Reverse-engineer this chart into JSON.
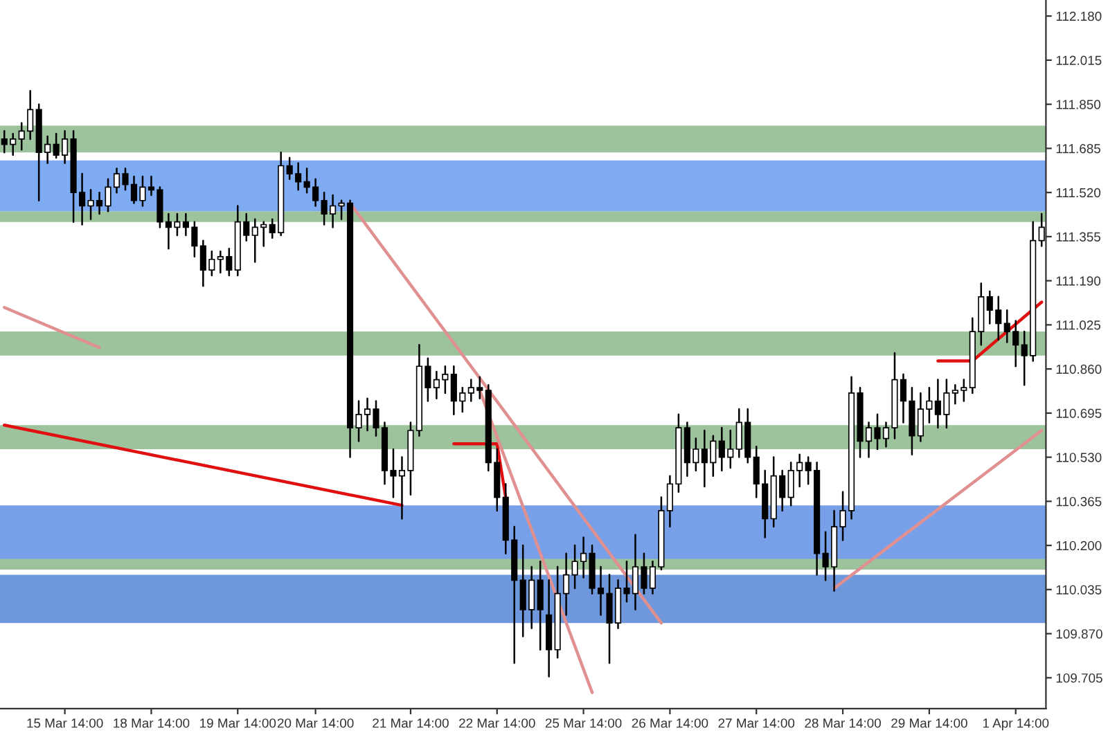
{
  "chart_data": {
    "type": "candlestick",
    "categories": [
      null,
      null,
      null,
      null,
      null,
      null,
      null,
      "15 Mar 14:00",
      null,
      null,
      null,
      null,
      null,
      null,
      null,
      null,
      null,
      "18 Mar 14:00",
      null,
      null,
      null,
      null,
      null,
      null,
      null,
      null,
      null,
      "19 Mar 14:00",
      null,
      null,
      null,
      null,
      null,
      null,
      null,
      null,
      "20 Mar 14:00",
      null,
      null,
      null,
      null,
      null,
      null,
      null,
      null,
      null,
      null,
      "21 Mar 14:00",
      null,
      null,
      null,
      null,
      null,
      null,
      null,
      null,
      null,
      "22 Mar 14:00",
      null,
      null,
      null,
      null,
      null,
      null,
      null,
      null,
      null,
      "25 Mar 14:00",
      null,
      null,
      null,
      null,
      null,
      null,
      null,
      null,
      null,
      "26 Mar 14:00",
      null,
      null,
      null,
      null,
      null,
      null,
      null,
      null,
      null,
      "27 Mar 14:00",
      null,
      null,
      null,
      null,
      null,
      null,
      null,
      null,
      null,
      "28 Mar 14:00",
      null,
      null,
      null,
      null,
      null,
      null,
      null,
      null,
      null,
      "29 Mar 14:00",
      null,
      null,
      null,
      null,
      null,
      null,
      null,
      null,
      null,
      "1 Apr 14:00",
      null,
      null,
      null
    ],
    "ohlc": [
      [
        111.72,
        111.75,
        111.67,
        111.7
      ],
      [
        111.7,
        111.74,
        111.66,
        111.72
      ],
      [
        111.72,
        111.78,
        111.68,
        111.75
      ],
      [
        111.75,
        111.9,
        111.72,
        111.83
      ],
      [
        111.83,
        111.85,
        111.49,
        111.67
      ],
      [
        111.67,
        111.73,
        111.63,
        111.7
      ],
      [
        111.7,
        111.74,
        111.65,
        111.66
      ],
      [
        111.66,
        111.75,
        111.63,
        111.72
      ],
      [
        111.72,
        111.75,
        111.41,
        111.52
      ],
      [
        111.52,
        111.59,
        111.4,
        111.47
      ],
      [
        111.47,
        111.53,
        111.42,
        111.49
      ],
      [
        111.49,
        111.52,
        111.44,
        111.47
      ],
      [
        111.47,
        111.57,
        111.45,
        111.54
      ],
      [
        111.54,
        111.61,
        111.52,
        111.59
      ],
      [
        111.59,
        111.61,
        111.53,
        111.55
      ],
      [
        111.55,
        111.58,
        111.48,
        111.49
      ],
      [
        111.49,
        111.58,
        111.47,
        111.54
      ],
      [
        111.54,
        111.58,
        111.51,
        111.53
      ],
      [
        111.53,
        111.54,
        111.39,
        111.41
      ],
      [
        111.41,
        111.44,
        111.31,
        111.39
      ],
      [
        111.39,
        111.44,
        111.36,
        111.41
      ],
      [
        111.41,
        111.44,
        111.36,
        111.39
      ],
      [
        111.39,
        111.41,
        111.28,
        111.32
      ],
      [
        111.32,
        111.34,
        111.17,
        111.23
      ],
      [
        111.23,
        111.3,
        111.21,
        111.27
      ],
      [
        111.27,
        111.3,
        111.22,
        111.28
      ],
      [
        111.28,
        111.31,
        111.21,
        111.23
      ],
      [
        111.23,
        111.47,
        111.21,
        111.41
      ],
      [
        111.41,
        111.44,
        111.34,
        111.36
      ],
      [
        111.36,
        111.42,
        111.26,
        111.39
      ],
      [
        111.39,
        111.41,
        111.32,
        111.4
      ],
      [
        111.4,
        111.42,
        111.35,
        111.37
      ],
      [
        111.37,
        111.67,
        111.36,
        111.62
      ],
      [
        111.62,
        111.65,
        111.57,
        111.59
      ],
      [
        111.59,
        111.63,
        111.53,
        111.56
      ],
      [
        111.56,
        111.61,
        111.52,
        111.54
      ],
      [
        111.54,
        111.57,
        111.47,
        111.49
      ],
      [
        111.49,
        111.52,
        111.4,
        111.44
      ],
      [
        111.44,
        111.51,
        111.39,
        111.47
      ],
      [
        111.47,
        111.49,
        111.42,
        111.48
      ],
      [
        111.48,
        111.49,
        110.53,
        110.64
      ],
      [
        110.64,
        110.74,
        110.59,
        110.69
      ],
      [
        110.69,
        110.75,
        110.63,
        110.71
      ],
      [
        110.71,
        110.74,
        110.61,
        110.64
      ],
      [
        110.64,
        110.66,
        110.43,
        110.48
      ],
      [
        110.48,
        110.56,
        110.38,
        110.46
      ],
      [
        110.46,
        110.53,
        110.3,
        110.48
      ],
      [
        110.48,
        110.66,
        110.39,
        110.63
      ],
      [
        110.63,
        110.95,
        110.61,
        110.87
      ],
      [
        110.87,
        110.9,
        110.74,
        110.79
      ],
      [
        110.79,
        110.85,
        110.75,
        110.82
      ],
      [
        110.82,
        110.87,
        110.77,
        110.84
      ],
      [
        110.84,
        110.87,
        110.69,
        110.74
      ],
      [
        110.74,
        110.79,
        110.7,
        110.77
      ],
      [
        110.77,
        110.82,
        110.74,
        110.79
      ],
      [
        110.79,
        110.83,
        110.75,
        110.78
      ],
      [
        110.78,
        110.8,
        110.48,
        110.51
      ],
      [
        110.51,
        110.56,
        110.33,
        110.38
      ],
      [
        110.38,
        110.43,
        110.17,
        110.22
      ],
      [
        110.22,
        110.27,
        109.76,
        110.07
      ],
      [
        110.07,
        110.2,
        109.86,
        109.96
      ],
      [
        109.96,
        110.12,
        109.89,
        110.07
      ],
      [
        110.07,
        110.14,
        109.81,
        109.96
      ],
      [
        109.94,
        110.07,
        109.71,
        109.81
      ],
      [
        109.81,
        110.12,
        109.78,
        110.02
      ],
      [
        110.02,
        110.17,
        109.94,
        110.09
      ],
      [
        110.09,
        110.2,
        110.04,
        110.14
      ],
      [
        110.14,
        110.23,
        110.08,
        110.17
      ],
      [
        110.17,
        110.2,
        110.02,
        110.04
      ],
      [
        110.04,
        110.12,
        109.94,
        110.02
      ],
      [
        110.02,
        110.09,
        109.76,
        109.91
      ],
      [
        109.91,
        110.07,
        109.89,
        110.04
      ],
      [
        110.04,
        110.14,
        109.99,
        110.02
      ],
      [
        110.02,
        110.24,
        109.96,
        110.12
      ],
      [
        110.12,
        110.17,
        110.02,
        110.04
      ],
      [
        110.04,
        110.14,
        110.02,
        110.12
      ],
      [
        110.12,
        110.38,
        110.11,
        110.33
      ],
      [
        110.33,
        110.46,
        110.27,
        110.43
      ],
      [
        110.43,
        110.69,
        110.4,
        110.64
      ],
      [
        110.64,
        110.66,
        110.46,
        110.51
      ],
      [
        110.51,
        110.6,
        110.48,
        110.56
      ],
      [
        110.56,
        110.63,
        110.42,
        110.51
      ],
      [
        110.51,
        110.61,
        110.46,
        110.59
      ],
      [
        110.59,
        110.64,
        110.48,
        110.53
      ],
      [
        110.53,
        110.63,
        110.49,
        110.56
      ],
      [
        110.56,
        110.71,
        110.53,
        110.66
      ],
      [
        110.66,
        110.71,
        110.51,
        110.53
      ],
      [
        110.53,
        110.57,
        110.38,
        110.43
      ],
      [
        110.43,
        110.48,
        110.23,
        110.3
      ],
      [
        110.3,
        110.53,
        110.27,
        110.46
      ],
      [
        110.46,
        110.48,
        110.33,
        110.38
      ],
      [
        110.38,
        110.51,
        110.35,
        110.48
      ],
      [
        110.48,
        110.54,
        110.42,
        110.51
      ],
      [
        110.51,
        110.53,
        110.43,
        110.48
      ],
      [
        110.48,
        110.51,
        110.09,
        110.17
      ],
      [
        110.17,
        110.25,
        110.07,
        110.12
      ],
      [
        110.12,
        110.33,
        110.03,
        110.27
      ],
      [
        110.27,
        110.4,
        110.22,
        110.33
      ],
      [
        110.33,
        110.83,
        110.3,
        110.77
      ],
      [
        110.77,
        110.79,
        110.53,
        110.59
      ],
      [
        110.59,
        110.66,
        110.53,
        110.64
      ],
      [
        110.64,
        110.69,
        110.56,
        110.6
      ],
      [
        110.6,
        110.66,
        110.57,
        110.64
      ],
      [
        110.64,
        110.92,
        110.6,
        110.82
      ],
      [
        110.82,
        110.84,
        110.66,
        110.74
      ],
      [
        110.74,
        110.79,
        110.54,
        110.61
      ],
      [
        110.61,
        110.77,
        110.59,
        110.71
      ],
      [
        110.71,
        110.79,
        110.66,
        110.74
      ],
      [
        110.74,
        110.82,
        110.64,
        110.69
      ],
      [
        110.69,
        110.82,
        110.64,
        110.77
      ],
      [
        110.77,
        110.8,
        110.73,
        110.78
      ],
      [
        110.78,
        110.82,
        110.74,
        110.79
      ],
      [
        110.79,
        111.05,
        110.77,
        111.0
      ],
      [
        111.0,
        111.18,
        110.95,
        111.13
      ],
      [
        111.13,
        111.15,
        111.03,
        111.08
      ],
      [
        111.08,
        111.13,
        110.97,
        111.03
      ],
      [
        111.03,
        111.08,
        110.96,
        111.0
      ],
      [
        111.0,
        111.04,
        110.87,
        110.95
      ],
      [
        110.95,
        111.0,
        110.8,
        110.91
      ],
      [
        110.91,
        111.41,
        110.89,
        111.34
      ],
      [
        111.34,
        111.44,
        111.32,
        111.39
      ]
    ],
    "series": [
      {
        "type": "line",
        "color": "#e01010",
        "values": [
          110.65,
          null,
          null,
          null,
          null,
          null,
          null,
          null,
          null,
          null,
          null,
          null,
          null,
          null,
          null,
          null,
          null,
          null,
          null,
          null,
          null,
          null,
          null,
          null,
          null,
          null,
          null,
          null,
          null,
          null,
          null,
          null,
          null,
          null,
          null,
          null,
          null,
          null,
          null,
          null,
          null,
          null,
          null,
          null,
          null,
          null,
          110.35,
          null,
          null,
          null,
          null,
          null,
          null,
          null,
          null,
          null,
          null,
          null,
          null,
          null,
          null,
          null,
          null,
          null,
          null,
          null,
          null,
          null,
          null,
          null,
          null,
          null,
          null,
          null,
          null,
          null,
          null,
          null,
          null,
          null,
          null,
          null,
          null,
          null,
          null,
          null,
          null,
          null,
          null,
          null,
          null,
          null,
          null,
          null,
          null,
          null,
          null,
          null,
          null,
          null,
          null,
          null,
          null,
          null,
          null,
          null,
          null,
          null,
          null,
          null,
          null,
          null,
          null,
          null,
          null,
          null,
          null,
          null,
          null,
          null,
          null
        ]
      },
      {
        "type": "line",
        "color": "#e01010",
        "values": [
          null,
          null,
          null,
          null,
          null,
          null,
          null,
          null,
          null,
          null,
          null,
          null,
          null,
          null,
          null,
          null,
          null,
          null,
          null,
          null,
          null,
          null,
          null,
          null,
          null,
          null,
          null,
          null,
          null,
          null,
          null,
          null,
          null,
          null,
          null,
          null,
          null,
          null,
          null,
          null,
          null,
          null,
          null,
          null,
          null,
          null,
          null,
          null,
          null,
          null,
          null,
          null,
          110.58,
          null,
          null,
          null,
          null,
          110.58,
          110.38,
          null,
          null,
          null,
          null,
          null,
          null,
          null,
          null,
          null,
          null,
          null,
          null,
          null,
          null,
          null,
          null,
          null,
          null,
          null,
          null,
          null,
          null,
          null,
          null,
          null,
          null,
          null,
          null,
          null,
          null,
          null,
          null,
          null,
          null,
          null,
          null,
          null,
          null,
          null,
          null,
          null,
          null,
          null,
          null,
          null,
          null,
          null,
          null,
          null,
          null,
          null,
          null,
          null,
          null,
          null,
          null,
          null,
          null,
          null,
          null,
          null,
          null
        ]
      },
      {
        "type": "line",
        "color": "#e01010",
        "values": [
          null,
          null,
          null,
          null,
          null,
          null,
          null,
          null,
          null,
          null,
          null,
          null,
          null,
          null,
          null,
          null,
          null,
          null,
          null,
          null,
          null,
          null,
          null,
          null,
          null,
          null,
          null,
          null,
          null,
          null,
          null,
          null,
          null,
          null,
          null,
          null,
          null,
          null,
          null,
          null,
          null,
          null,
          null,
          null,
          null,
          null,
          null,
          null,
          null,
          null,
          null,
          null,
          null,
          null,
          null,
          null,
          null,
          null,
          null,
          null,
          null,
          null,
          null,
          null,
          null,
          null,
          null,
          null,
          null,
          null,
          null,
          null,
          null,
          null,
          null,
          null,
          null,
          null,
          null,
          null,
          null,
          null,
          null,
          null,
          null,
          null,
          null,
          null,
          null,
          null,
          null,
          null,
          null,
          null,
          null,
          null,
          null,
          null,
          null,
          null,
          null,
          null,
          null,
          null,
          null,
          null,
          null,
          null,
          110.89,
          null,
          null,
          null,
          110.89,
          null,
          null,
          null,
          null,
          null,
          null,
          null,
          111.11
        ]
      },
      {
        "type": "line",
        "color": "#e09090",
        "values": [
          111.09,
          null,
          null,
          null,
          null,
          null,
          null,
          null,
          null,
          null,
          null,
          110.94,
          null,
          null,
          null,
          null,
          null,
          null,
          null,
          null,
          null,
          null,
          null,
          null,
          null,
          null,
          null,
          null,
          null,
          null,
          null,
          null,
          null,
          null,
          null,
          null,
          null,
          null,
          null,
          null,
          null,
          null,
          null,
          null,
          null,
          null,
          null,
          null,
          null,
          null,
          null,
          null,
          null,
          null,
          null,
          null,
          null,
          null,
          null,
          null,
          null,
          null,
          null,
          null,
          null,
          null,
          null,
          null,
          null,
          null,
          null,
          null,
          null,
          null,
          null,
          null,
          null,
          null,
          null,
          null,
          null,
          null,
          null,
          null,
          null,
          null,
          null,
          null,
          null,
          null,
          null,
          null,
          null,
          null,
          null,
          null,
          null,
          null,
          null,
          null,
          null,
          null,
          null,
          null,
          null,
          null,
          null,
          null,
          null,
          null,
          null,
          null,
          null,
          null,
          null,
          null,
          null,
          null,
          null,
          null,
          null
        ]
      },
      {
        "type": "line",
        "color": "#e09090",
        "values": [
          null,
          null,
          null,
          null,
          null,
          null,
          null,
          null,
          null,
          null,
          null,
          null,
          null,
          null,
          null,
          null,
          null,
          null,
          null,
          null,
          null,
          null,
          null,
          null,
          null,
          null,
          null,
          null,
          null,
          null,
          null,
          null,
          null,
          null,
          null,
          null,
          null,
          null,
          null,
          null,
          111.48,
          null,
          null,
          null,
          null,
          null,
          null,
          null,
          null,
          null,
          null,
          null,
          null,
          null,
          null,
          null,
          null,
          null,
          null,
          null,
          null,
          null,
          null,
          null,
          null,
          null,
          null,
          null,
          null,
          null,
          null,
          null,
          null,
          null,
          null,
          null,
          109.91,
          null,
          null,
          null,
          null,
          null,
          null,
          null,
          null,
          null,
          null,
          null,
          null,
          null,
          null,
          null,
          null,
          null,
          null,
          null,
          null,
          null,
          null,
          null,
          null,
          null,
          null,
          null,
          null,
          null,
          null,
          null,
          null,
          null,
          null,
          null,
          null,
          null,
          null,
          null,
          null,
          null,
          null,
          null,
          null
        ]
      },
      {
        "type": "line",
        "color": "#e09090",
        "values": [
          null,
          null,
          null,
          null,
          null,
          null,
          null,
          null,
          null,
          null,
          null,
          null,
          null,
          null,
          null,
          null,
          null,
          null,
          null,
          null,
          null,
          null,
          null,
          null,
          null,
          null,
          null,
          null,
          null,
          null,
          null,
          null,
          null,
          null,
          null,
          null,
          null,
          null,
          null,
          null,
          null,
          null,
          null,
          null,
          null,
          null,
          null,
          null,
          null,
          null,
          null,
          null,
          null,
          null,
          null,
          110.78,
          null,
          null,
          null,
          null,
          null,
          null,
          null,
          null,
          null,
          null,
          null,
          null,
          109.65,
          null,
          null,
          null,
          null,
          null,
          null,
          null,
          null,
          null,
          null,
          null,
          null,
          null,
          null,
          null,
          null,
          null,
          null,
          null,
          null,
          null,
          null,
          null,
          null,
          null,
          null,
          null,
          null,
          null,
          null,
          null,
          null,
          null,
          null,
          null,
          null,
          null,
          null,
          null,
          null,
          null,
          null,
          null,
          null,
          null,
          null,
          null,
          null,
          null,
          null,
          null,
          null
        ]
      },
      {
        "type": "line",
        "color": "#e09090",
        "values": [
          null,
          null,
          null,
          null,
          null,
          null,
          null,
          null,
          null,
          null,
          null,
          null,
          null,
          null,
          null,
          null,
          null,
          null,
          null,
          null,
          null,
          null,
          null,
          null,
          null,
          null,
          null,
          null,
          null,
          null,
          null,
          null,
          null,
          null,
          null,
          null,
          null,
          null,
          null,
          null,
          null,
          null,
          null,
          null,
          null,
          null,
          null,
          null,
          null,
          null,
          null,
          null,
          null,
          null,
          null,
          null,
          null,
          null,
          null,
          null,
          null,
          null,
          null,
          null,
          null,
          null,
          null,
          null,
          null,
          null,
          null,
          null,
          null,
          null,
          null,
          null,
          null,
          null,
          null,
          null,
          null,
          null,
          null,
          null,
          null,
          null,
          null,
          null,
          null,
          null,
          null,
          null,
          null,
          null,
          null,
          null,
          110.04,
          null,
          null,
          null,
          null,
          null,
          null,
          null,
          null,
          null,
          null,
          null,
          null,
          null,
          null,
          null,
          null,
          null,
          null,
          null,
          null,
          null,
          null,
          null,
          110.63
        ]
      }
    ],
    "bands": [
      {
        "axis": "y",
        "from": 111.67,
        "to": 111.77,
        "color": "#9cc39c"
      },
      {
        "axis": "y",
        "from": 111.41,
        "to": 111.45,
        "color": "#9cc39c"
      },
      {
        "axis": "y",
        "from": 110.91,
        "to": 111.0,
        "color": "#9cc39c"
      },
      {
        "axis": "y",
        "from": 110.14,
        "to": 110.35,
        "color": "#77a0e8"
      },
      {
        "axis": "y",
        "from": 109.91,
        "to": 110.09,
        "color": "#6f98dc"
      },
      {
        "axis": "y",
        "from": 111.45,
        "to": 111.64,
        "color": "#7eabf2"
      },
      {
        "axis": "y",
        "from": 110.56,
        "to": 110.65,
        "color": "#9cc39c"
      },
      {
        "axis": "y",
        "from": 110.11,
        "to": 110.15,
        "color": "#9cc39c"
      }
    ],
    "ylim": [
      109.59,
      112.24
    ],
    "yticks": [
      {
        "value": 109.705,
        "label": "109.705"
      },
      {
        "value": 109.87,
        "label": "109.870"
      },
      {
        "value": 110.035,
        "label": "110.035"
      },
      {
        "value": 110.2,
        "label": "110.200"
      },
      {
        "value": 110.365,
        "label": "110.365"
      },
      {
        "value": 110.53,
        "label": "110.530"
      },
      {
        "value": 110.695,
        "label": "110.695"
      },
      {
        "value": 110.86,
        "label": "110.860"
      },
      {
        "value": 111.025,
        "label": "111.025"
      },
      {
        "value": 111.19,
        "label": "111.190"
      },
      {
        "value": 111.355,
        "label": "111.355"
      },
      {
        "value": 111.52,
        "label": "111.520"
      },
      {
        "value": 111.685,
        "label": "111.685"
      },
      {
        "value": 111.85,
        "label": "111.850"
      },
      {
        "value": 112.015,
        "label": "112.015"
      },
      {
        "value": 112.18,
        "label": "112.180"
      }
    ],
    "grid": false,
    "legend": false
  }
}
